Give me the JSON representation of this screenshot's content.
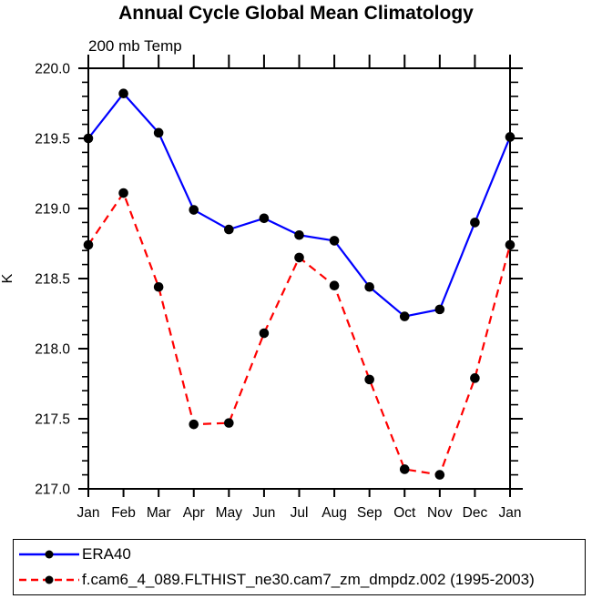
{
  "chart": {
    "title": "Annual Cycle Global Mean Climatology",
    "subtitle": "200 mb Temp",
    "ylabel": "K"
  },
  "chart_data": {
    "type": "line",
    "title": "Annual Cycle Global Mean Climatology",
    "subtitle": "200 mb Temp",
    "xlabel": "",
    "ylabel": "K",
    "categories": [
      "Jan",
      "Feb",
      "Mar",
      "Apr",
      "May",
      "Jun",
      "Jul",
      "Aug",
      "Sep",
      "Oct",
      "Nov",
      "Dec",
      "Jan"
    ],
    "ylim": [
      217.0,
      220.0
    ],
    "ytick_major": 0.5,
    "ytick_minor": 0.1,
    "grid": false,
    "legend_position": "bottom",
    "series": [
      {
        "name": "ERA40",
        "color": "#0000ff",
        "style": "solid",
        "marker": "circle",
        "marker_color": "#000000",
        "values": [
          219.5,
          219.82,
          219.54,
          218.99,
          218.85,
          218.93,
          218.81,
          218.77,
          218.44,
          218.23,
          218.28,
          218.9,
          219.51
        ]
      },
      {
        "name": "f.cam6_4_089.FLTHIST_ne30.cam7_zm_dmpdz.002 (1995-2003)",
        "color": "#ff0000",
        "style": "dashed",
        "marker": "circle",
        "marker_color": "#000000",
        "values": [
          218.74,
          219.11,
          218.44,
          217.46,
          217.47,
          218.11,
          218.65,
          218.45,
          217.78,
          217.14,
          217.1,
          217.79,
          218.74
        ]
      }
    ]
  },
  "colors": {
    "axis": "#000000",
    "background": "#ffffff",
    "era40_line": "#0000ff",
    "model_line": "#ff0000",
    "marker": "#000000"
  }
}
